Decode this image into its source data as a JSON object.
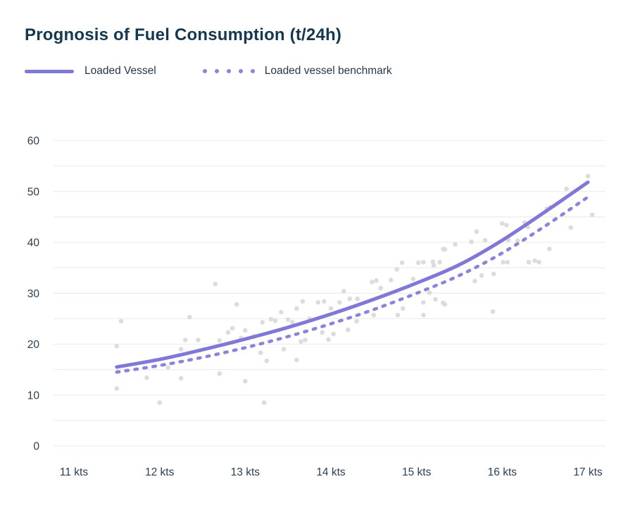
{
  "title": "Prognosis of Fuel Consumption (t/24h)",
  "legend": [
    {
      "label": "Loaded Vessel",
      "style": "solid"
    },
    {
      "label": "Loaded vessel benchmark",
      "style": "dotted"
    }
  ],
  "colors": {
    "title_text": "#16384f",
    "tick_label": "#2a3f52",
    "grid_line": "#e9efec",
    "main_line": "#8078d6",
    "benchmark_line": "#8c84dc",
    "scatter_point": "#dcdcde",
    "background": "#ffffff"
  },
  "chart_data": {
    "type": "line",
    "title": "Prognosis of Fuel Consumption (t/24h)",
    "xlabel": "",
    "ylabel": "",
    "x_unit": "kts",
    "x_tick_values": [
      11,
      12,
      13,
      14,
      15,
      16,
      17
    ],
    "x_tick_labels": [
      "11 kts",
      "12 kts",
      "13 kts",
      "14 kts",
      "15 kts",
      "16 kts",
      "17 kts"
    ],
    "xlim": [
      11,
      17
    ],
    "y_ticks": [
      0,
      10,
      20,
      30,
      40,
      50,
      60
    ],
    "ylim": [
      0,
      60
    ],
    "y_grid_step": 5,
    "grid": true,
    "legend_position": "top-left",
    "series": [
      {
        "name": "Observations",
        "type": "scatter",
        "color": "#dcdcde",
        "points": [
          [
            11.55,
            24.5
          ],
          [
            11.5,
            19.6
          ],
          [
            11.5,
            11.3
          ],
          [
            11.85,
            13.4
          ],
          [
            12.0,
            8.5
          ],
          [
            12.1,
            15.4
          ],
          [
            12.25,
            13.3
          ],
          [
            12.25,
            19.0
          ],
          [
            12.3,
            20.8
          ],
          [
            12.35,
            25.3
          ],
          [
            12.45,
            20.8
          ],
          [
            12.65,
            31.8
          ],
          [
            12.7,
            14.2
          ],
          [
            12.7,
            20.7
          ],
          [
            12.8,
            22.3
          ],
          [
            12.85,
            23.1
          ],
          [
            12.9,
            27.8
          ],
          [
            12.95,
            21.2
          ],
          [
            13.0,
            12.7
          ],
          [
            13.0,
            22.7
          ],
          [
            13.1,
            21.5
          ],
          [
            13.18,
            18.3
          ],
          [
            13.2,
            24.3
          ],
          [
            13.22,
            8.5
          ],
          [
            13.25,
            16.7
          ],
          [
            13.3,
            24.9
          ],
          [
            13.35,
            24.6
          ],
          [
            13.42,
            26.3
          ],
          [
            13.45,
            19.0
          ],
          [
            13.5,
            24.8
          ],
          [
            13.55,
            24.3
          ],
          [
            13.6,
            27.0
          ],
          [
            13.6,
            16.9
          ],
          [
            13.65,
            20.5
          ],
          [
            13.67,
            28.4
          ],
          [
            13.7,
            20.8
          ],
          [
            13.75,
            25.0
          ],
          [
            13.85,
            28.2
          ],
          [
            13.9,
            22.3
          ],
          [
            13.92,
            28.4
          ],
          [
            13.97,
            20.9
          ],
          [
            14.0,
            27.0
          ],
          [
            14.03,
            22.0
          ],
          [
            14.1,
            28.2
          ],
          [
            14.15,
            30.4
          ],
          [
            14.2,
            22.8
          ],
          [
            14.22,
            28.9
          ],
          [
            14.3,
            24.5
          ],
          [
            14.31,
            28.9
          ],
          [
            14.48,
            32.2
          ],
          [
            14.5,
            25.7
          ],
          [
            14.53,
            32.5
          ],
          [
            14.58,
            31.0
          ],
          [
            14.7,
            32.6
          ],
          [
            14.77,
            34.7
          ],
          [
            14.78,
            25.7
          ],
          [
            14.83,
            36.0
          ],
          [
            14.84,
            27.0
          ],
          [
            14.96,
            32.8
          ],
          [
            15.02,
            36.0
          ],
          [
            15.08,
            36.1
          ],
          [
            15.08,
            25.7
          ],
          [
            15.08,
            28.2
          ],
          [
            15.15,
            30.1
          ],
          [
            15.19,
            36.2
          ],
          [
            15.2,
            35.5
          ],
          [
            15.22,
            28.8
          ],
          [
            15.27,
            36.1
          ],
          [
            15.31,
            38.7
          ],
          [
            15.31,
            28.1
          ],
          [
            15.33,
            38.6
          ],
          [
            15.33,
            27.8
          ],
          [
            15.45,
            39.6
          ],
          [
            15.64,
            40.1
          ],
          [
            15.7,
            42.1
          ],
          [
            15.68,
            32.4
          ],
          [
            15.76,
            33.5
          ],
          [
            15.8,
            40.4
          ],
          [
            15.89,
            26.4
          ],
          [
            15.9,
            33.8
          ],
          [
            16.0,
            43.7
          ],
          [
            16.01,
            36.1
          ],
          [
            16.05,
            43.4
          ],
          [
            16.06,
            36.1
          ],
          [
            16.07,
            40.5
          ],
          [
            16.18,
            40.3
          ],
          [
            16.26,
            43.9
          ],
          [
            16.3,
            43.0
          ],
          [
            16.31,
            36.1
          ],
          [
            16.38,
            36.4
          ],
          [
            16.43,
            36.1
          ],
          [
            16.52,
            46.6
          ],
          [
            16.56,
            46.9
          ],
          [
            16.55,
            38.7
          ],
          [
            16.75,
            50.5
          ],
          [
            16.8,
            42.9
          ],
          [
            17.0,
            53.0
          ],
          [
            17.05,
            45.4
          ]
        ]
      },
      {
        "name": "Loaded vessel benchmark",
        "type": "line",
        "style": "dotted",
        "color": "#8c84dc",
        "points": [
          [
            11.5,
            14.5
          ],
          [
            12.0,
            15.8
          ],
          [
            12.5,
            17.4
          ],
          [
            13.0,
            19.3
          ],
          [
            13.5,
            21.5
          ],
          [
            14.0,
            24.0
          ],
          [
            14.5,
            26.8
          ],
          [
            15.0,
            30.0
          ],
          [
            15.5,
            33.5
          ],
          [
            16.0,
            37.9
          ],
          [
            16.5,
            43.2
          ],
          [
            17.0,
            48.9
          ]
        ]
      },
      {
        "name": "Loaded Vessel",
        "type": "line",
        "style": "solid",
        "color": "#8078d6",
        "points": [
          [
            11.5,
            15.5
          ],
          [
            12.0,
            17.0
          ],
          [
            12.5,
            18.9
          ],
          [
            13.0,
            21.0
          ],
          [
            13.5,
            23.3
          ],
          [
            14.0,
            25.9
          ],
          [
            14.5,
            28.8
          ],
          [
            15.0,
            32.0
          ],
          [
            15.5,
            35.6
          ],
          [
            16.0,
            40.4
          ],
          [
            16.5,
            46.0
          ],
          [
            17.0,
            51.8
          ]
        ]
      }
    ]
  }
}
